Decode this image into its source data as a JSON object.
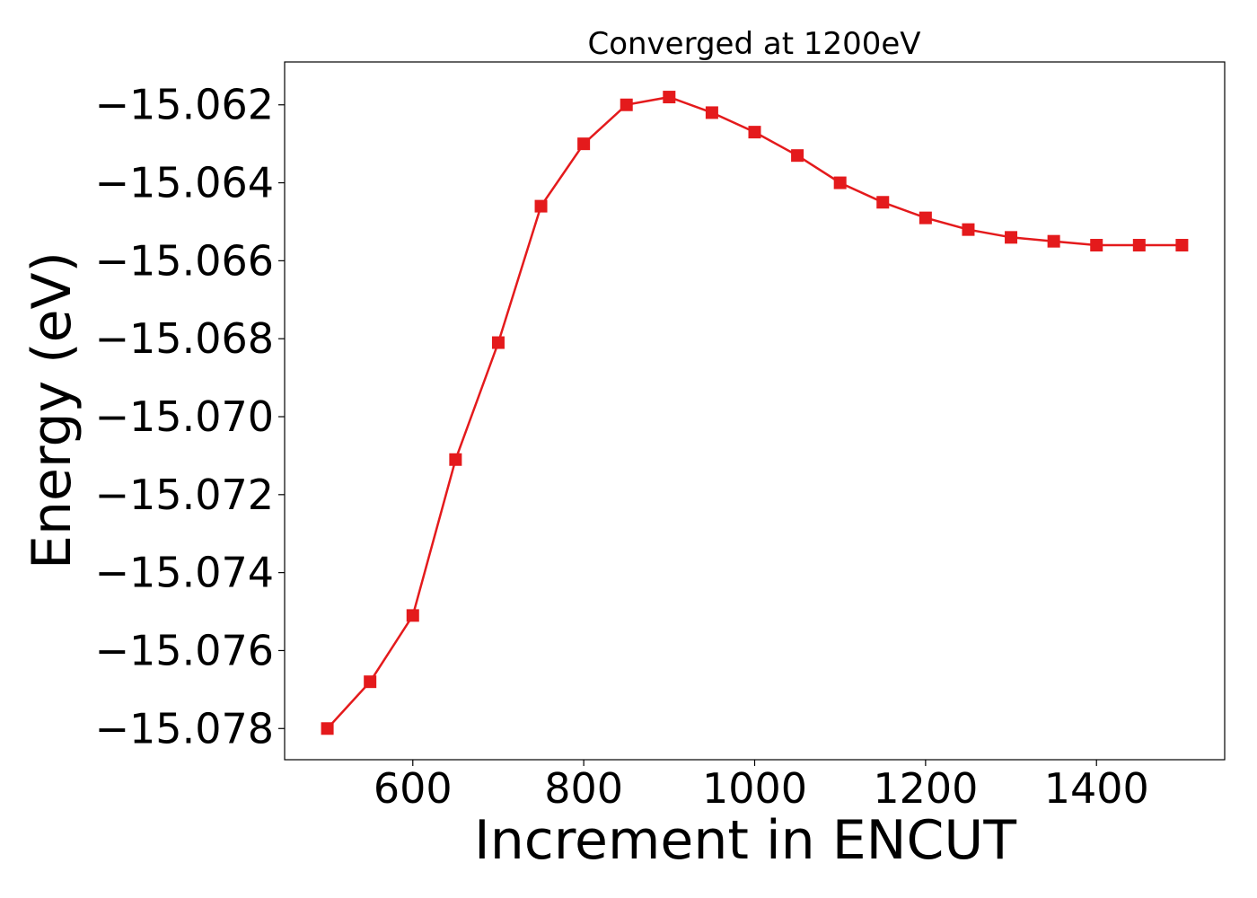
{
  "chart_data": {
    "type": "line",
    "title": "Converged at 1200eV",
    "xlabel": "Increment in ENCUT",
    "ylabel": "Energy (eV)",
    "xlim": [
      450,
      1550
    ],
    "ylim": [
      -15.0788,
      -15.0609
    ],
    "xticks": [
      600,
      800,
      1000,
      1200,
      1400
    ],
    "yticks": [
      -15.078,
      -15.076,
      -15.074,
      -15.072,
      -15.07,
      -15.068,
      -15.066,
      -15.064,
      -15.062
    ],
    "grid": false,
    "legend": "none",
    "series": [
      {
        "color": "#e41a1c",
        "marker": "square",
        "x": [
          500,
          550,
          600,
          650,
          700,
          750,
          800,
          850,
          900,
          950,
          1000,
          1050,
          1100,
          1150,
          1200,
          1250,
          1300,
          1350,
          1400,
          1450,
          1500
        ],
        "y": [
          -15.078,
          -15.0768,
          -15.0751,
          -15.0711,
          -15.0681,
          -15.0646,
          -15.063,
          -15.062,
          -15.0618,
          -15.0622,
          -15.0627,
          -15.0633,
          -15.064,
          -15.0645,
          -15.0649,
          -15.0652,
          -15.0654,
          -15.0655,
          -15.0656,
          -15.0656,
          -15.0656
        ]
      }
    ]
  }
}
